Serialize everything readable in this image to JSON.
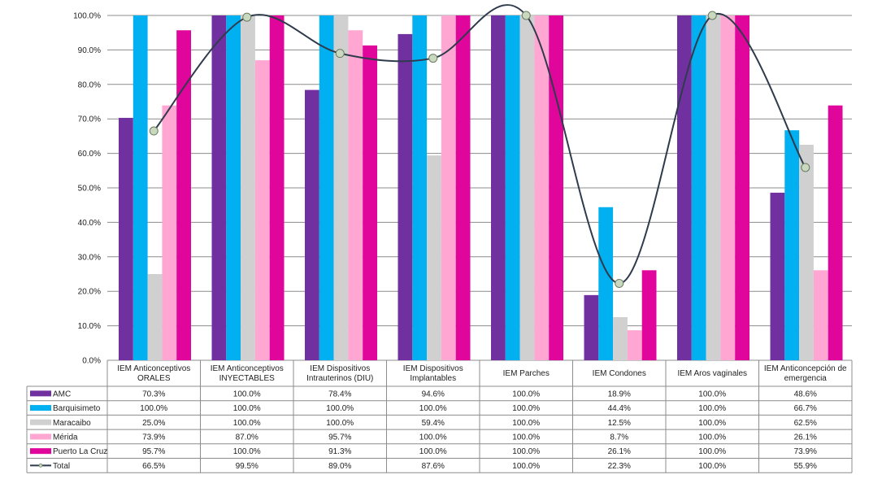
{
  "chart_data": {
    "type": "bar",
    "ylim": [
      0,
      100
    ],
    "yticks": [
      "0.0%",
      "10.0%",
      "20.0%",
      "30.0%",
      "40.0%",
      "50.0%",
      "60.0%",
      "70.0%",
      "80.0%",
      "90.0%",
      "100.0%"
    ],
    "grid": true,
    "legend": "data-table",
    "categories": [
      [
        "IEM Anticonceptivos",
        "ORALES"
      ],
      [
        "IEM Anticonceptivos",
        "INYECTABLES"
      ],
      [
        "IEM Dispositivos",
        "Intrauterinos (DIU)"
      ],
      [
        "IEM Dispositivos",
        "Implantables"
      ],
      [
        "IEM Parches"
      ],
      [
        "IEM Condones"
      ],
      [
        "IEM Aros vaginales"
      ],
      [
        "IEM Anticoncepción de",
        "emergencia"
      ]
    ],
    "series": [
      {
        "name": "AMC",
        "type": "bar",
        "color": "#7030A0",
        "values": [
          70.3,
          100,
          78.4,
          94.6,
          100,
          18.9,
          100,
          48.6
        ],
        "labels": [
          "70.3%",
          "100.0%",
          "78.4%",
          "94.6%",
          "100.0%",
          "18.9%",
          "100.0%",
          "48.6%"
        ]
      },
      {
        "name": "Barquisimeto",
        "type": "bar",
        "color": "#00B0F0",
        "values": [
          100,
          100,
          100,
          100,
          100,
          44.4,
          100,
          66.7
        ],
        "labels": [
          "100.0%",
          "100.0%",
          "100.0%",
          "100.0%",
          "100.0%",
          "44.4%",
          "100.0%",
          "66.7%"
        ]
      },
      {
        "name": "Maracaibo",
        "type": "bar",
        "color": "#D0D0D0",
        "values": [
          25.0,
          100,
          100,
          59.4,
          100,
          12.5,
          100,
          62.5
        ],
        "labels": [
          "25.0%",
          "100.0%",
          "100.0%",
          "59.4%",
          "100.0%",
          "12.5%",
          "100.0%",
          "62.5%"
        ]
      },
      {
        "name": "Mérida",
        "type": "bar",
        "color": "#FFA6D2",
        "values": [
          73.9,
          87.0,
          95.7,
          100,
          100,
          8.7,
          100,
          26.1
        ],
        "labels": [
          "73.9%",
          "87.0%",
          "95.7%",
          "100.0%",
          "100.0%",
          "8.7%",
          "100.0%",
          "26.1%"
        ]
      },
      {
        "name": "Puerto La Cruz",
        "type": "bar",
        "color": "#E0059B",
        "values": [
          95.7,
          100,
          91.3,
          100,
          100,
          26.1,
          100,
          73.9
        ],
        "labels": [
          "95.7%",
          "100.0%",
          "91.3%",
          "100.0%",
          "100.0%",
          "26.1%",
          "100.0%",
          "73.9%"
        ]
      },
      {
        "name": "Total",
        "type": "line",
        "color": "#2F3B4C",
        "marker_color": "#C9D9C0",
        "values": [
          66.5,
          99.5,
          89.0,
          87.6,
          100,
          22.3,
          100,
          55.9
        ],
        "labels": [
          "66.5%",
          "99.5%",
          "89.0%",
          "87.6%",
          "100.0%",
          "22.3%",
          "100.0%",
          "55.9%"
        ]
      }
    ]
  }
}
